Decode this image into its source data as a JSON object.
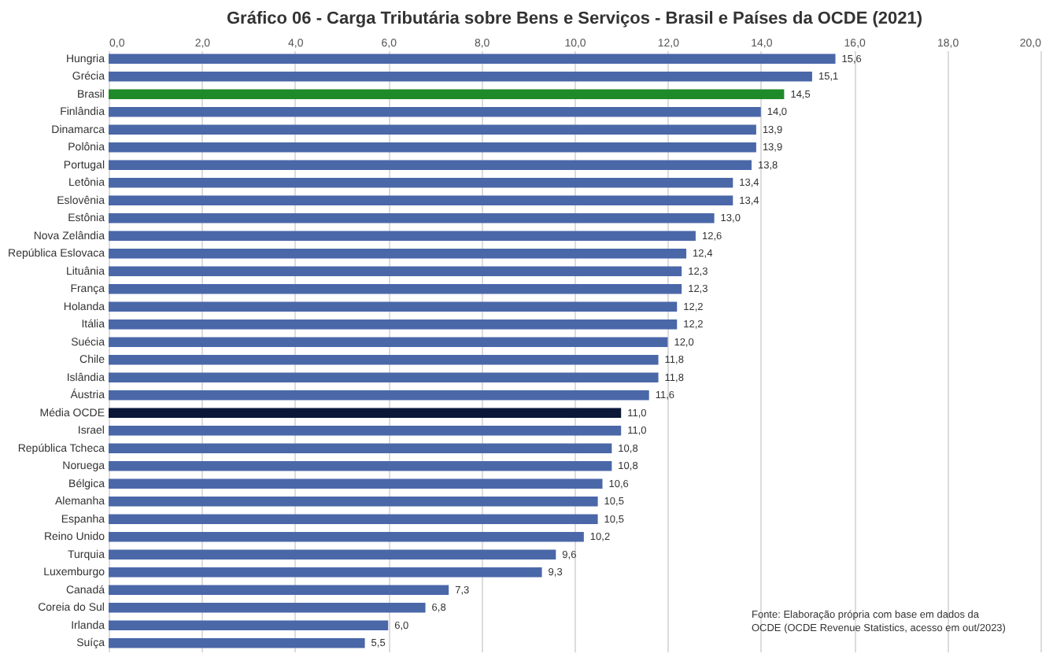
{
  "chart_data": {
    "type": "bar",
    "orientation": "horizontal",
    "title": "Gráfico 06 - Carga Tributária sobre Bens e Serviços - Brasil e Países da OCDE (2021)",
    "categories": [
      "Hungria",
      "Grécia",
      "Brasil",
      "Finlândia",
      "Dinamarca",
      "Polônia",
      "Portugal",
      "Letônia",
      "Eslovênia",
      "Estônia",
      "Nova Zelândia",
      "República Eslovaca",
      "Lituânia",
      "França",
      "Holanda",
      "Itália",
      "Suécia",
      "Chile",
      "Islândia",
      "Áustria",
      "Média OCDE",
      "Israel",
      "República Tcheca",
      "Noruega",
      "Bélgica",
      "Alemanha",
      "Espanha",
      "Reino Unido",
      "Turquia",
      "Luxemburgo",
      "Canadá",
      "Coreia do Sul",
      "Irlanda",
      "Suíça"
    ],
    "values": [
      15.6,
      15.1,
      14.5,
      14.0,
      13.9,
      13.9,
      13.8,
      13.4,
      13.4,
      13.0,
      12.6,
      12.4,
      12.3,
      12.3,
      12.2,
      12.2,
      12.0,
      11.8,
      11.8,
      11.6,
      11.0,
      11.0,
      10.8,
      10.8,
      10.6,
      10.5,
      10.5,
      10.2,
      9.6,
      9.3,
      7.3,
      6.8,
      6.0,
      5.5
    ],
    "value_labels": [
      "15,6",
      "15,1",
      "14,5",
      "14,0",
      "13,9",
      "13,9",
      "13,8",
      "13,4",
      "13,4",
      "13,0",
      "12,6",
      "12,4",
      "12,3",
      "12,3",
      "12,2",
      "12,2",
      "12,0",
      "11,8",
      "11,8",
      "11,6",
      "11,0",
      "11,0",
      "10,8",
      "10,8",
      "10,6",
      "10,5",
      "10,5",
      "10,2",
      "9,6",
      "9,3",
      "7,3",
      "6,8",
      "6,0",
      "5,5"
    ],
    "colors": [
      "#4a67a8",
      "#4a67a8",
      "#1f8a2a",
      "#4a67a8",
      "#4a67a8",
      "#4a67a8",
      "#4a67a8",
      "#4a67a8",
      "#4a67a8",
      "#4a67a8",
      "#4a67a8",
      "#4a67a8",
      "#4a67a8",
      "#4a67a8",
      "#4a67a8",
      "#4a67a8",
      "#4a67a8",
      "#4a67a8",
      "#4a67a8",
      "#4a67a8",
      "#0c1838",
      "#4a67a8",
      "#4a67a8",
      "#4a67a8",
      "#4a67a8",
      "#4a67a8",
      "#4a67a8",
      "#4a67a8",
      "#4a67a8",
      "#4a67a8",
      "#4a67a8",
      "#4a67a8",
      "#4a67a8",
      "#4a67a8"
    ],
    "xlim": [
      0,
      20
    ],
    "xticks": [
      {
        "value": 0,
        "label": "0,0"
      },
      {
        "value": 2,
        "label": "2,0"
      },
      {
        "value": 4,
        "label": "4,0"
      },
      {
        "value": 6,
        "label": "6,0"
      },
      {
        "value": 8,
        "label": "8,0"
      },
      {
        "value": 10,
        "label": "10,0"
      },
      {
        "value": 12,
        "label": "12,0"
      },
      {
        "value": 14,
        "label": "14,0"
      },
      {
        "value": 16,
        "label": "16,0"
      },
      {
        "value": 18,
        "label": "18,0"
      },
      {
        "value": 20,
        "label": "20,0"
      }
    ],
    "grid": "x",
    "annotations": [
      "Fonte: Elaboração própria com base em dados da OCDE (OCDE Revenue Statistics, acesso em out/2023)"
    ]
  }
}
